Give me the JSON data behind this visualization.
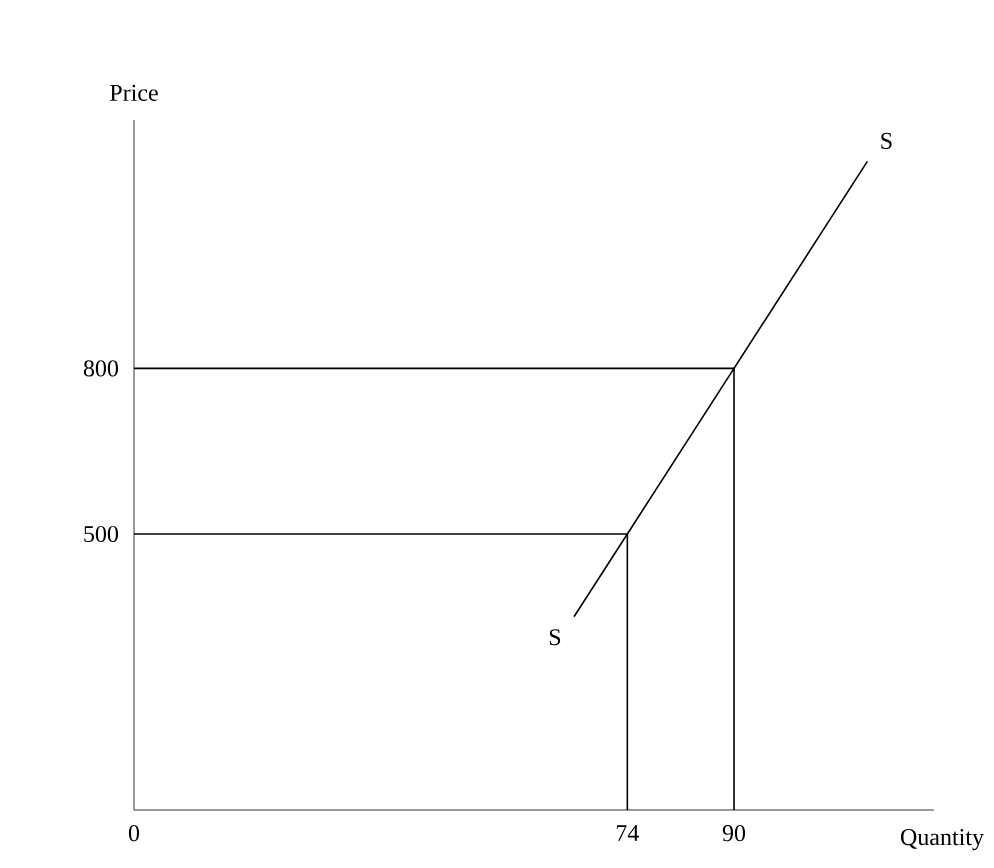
{
  "chart_data": {
    "type": "line",
    "xlabel": "Quantity",
    "ylabel": "Price",
    "xlim": [
      0,
      120
    ],
    "ylim": [
      0,
      1250
    ],
    "xticks": [
      0,
      74,
      90
    ],
    "yticks": [
      500,
      800
    ],
    "series": [
      {
        "color": "#000000",
        "x": [
          66,
          74,
          90,
          110
        ],
        "values": [
          350,
          500,
          800,
          1175
        ]
      },
      {
        "color": "#000000",
        "x": [
          0,
          74,
          74
        ],
        "values": [
          500,
          500,
          0
        ]
      },
      {
        "color": "#000000",
        "x": [
          0,
          90,
          90
        ],
        "values": [
          800,
          800,
          0
        ]
      }
    ],
    "annotations": [
      {
        "text": "S",
        "x": 66,
        "y": 350
      },
      {
        "text": "S",
        "x": 110,
        "y": 1175
      }
    ]
  }
}
